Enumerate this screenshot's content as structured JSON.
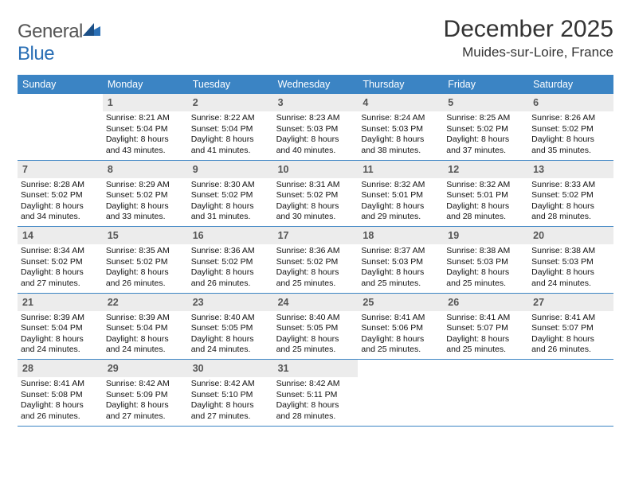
{
  "brand": {
    "part1": "General",
    "part2": "Blue"
  },
  "title": "December 2025",
  "subtitle": "Muides-sur-Loire, France",
  "colors": {
    "header_bg": "#3b84c4",
    "daynum_bg": "#ececec",
    "rule": "#3b84c4"
  },
  "day_headers": [
    "Sunday",
    "Monday",
    "Tuesday",
    "Wednesday",
    "Thursday",
    "Friday",
    "Saturday"
  ],
  "weeks": [
    [
      null,
      {
        "n": "1",
        "rise": "Sunrise: 8:21 AM",
        "set": "Sunset: 5:04 PM",
        "dl1": "Daylight: 8 hours",
        "dl2": "and 43 minutes."
      },
      {
        "n": "2",
        "rise": "Sunrise: 8:22 AM",
        "set": "Sunset: 5:04 PM",
        "dl1": "Daylight: 8 hours",
        "dl2": "and 41 minutes."
      },
      {
        "n": "3",
        "rise": "Sunrise: 8:23 AM",
        "set": "Sunset: 5:03 PM",
        "dl1": "Daylight: 8 hours",
        "dl2": "and 40 minutes."
      },
      {
        "n": "4",
        "rise": "Sunrise: 8:24 AM",
        "set": "Sunset: 5:03 PM",
        "dl1": "Daylight: 8 hours",
        "dl2": "and 38 minutes."
      },
      {
        "n": "5",
        "rise": "Sunrise: 8:25 AM",
        "set": "Sunset: 5:02 PM",
        "dl1": "Daylight: 8 hours",
        "dl2": "and 37 minutes."
      },
      {
        "n": "6",
        "rise": "Sunrise: 8:26 AM",
        "set": "Sunset: 5:02 PM",
        "dl1": "Daylight: 8 hours",
        "dl2": "and 35 minutes."
      }
    ],
    [
      {
        "n": "7",
        "rise": "Sunrise: 8:28 AM",
        "set": "Sunset: 5:02 PM",
        "dl1": "Daylight: 8 hours",
        "dl2": "and 34 minutes."
      },
      {
        "n": "8",
        "rise": "Sunrise: 8:29 AM",
        "set": "Sunset: 5:02 PM",
        "dl1": "Daylight: 8 hours",
        "dl2": "and 33 minutes."
      },
      {
        "n": "9",
        "rise": "Sunrise: 8:30 AM",
        "set": "Sunset: 5:02 PM",
        "dl1": "Daylight: 8 hours",
        "dl2": "and 31 minutes."
      },
      {
        "n": "10",
        "rise": "Sunrise: 8:31 AM",
        "set": "Sunset: 5:02 PM",
        "dl1": "Daylight: 8 hours",
        "dl2": "and 30 minutes."
      },
      {
        "n": "11",
        "rise": "Sunrise: 8:32 AM",
        "set": "Sunset: 5:01 PM",
        "dl1": "Daylight: 8 hours",
        "dl2": "and 29 minutes."
      },
      {
        "n": "12",
        "rise": "Sunrise: 8:32 AM",
        "set": "Sunset: 5:01 PM",
        "dl1": "Daylight: 8 hours",
        "dl2": "and 28 minutes."
      },
      {
        "n": "13",
        "rise": "Sunrise: 8:33 AM",
        "set": "Sunset: 5:02 PM",
        "dl1": "Daylight: 8 hours",
        "dl2": "and 28 minutes."
      }
    ],
    [
      {
        "n": "14",
        "rise": "Sunrise: 8:34 AM",
        "set": "Sunset: 5:02 PM",
        "dl1": "Daylight: 8 hours",
        "dl2": "and 27 minutes."
      },
      {
        "n": "15",
        "rise": "Sunrise: 8:35 AM",
        "set": "Sunset: 5:02 PM",
        "dl1": "Daylight: 8 hours",
        "dl2": "and 26 minutes."
      },
      {
        "n": "16",
        "rise": "Sunrise: 8:36 AM",
        "set": "Sunset: 5:02 PM",
        "dl1": "Daylight: 8 hours",
        "dl2": "and 26 minutes."
      },
      {
        "n": "17",
        "rise": "Sunrise: 8:36 AM",
        "set": "Sunset: 5:02 PM",
        "dl1": "Daylight: 8 hours",
        "dl2": "and 25 minutes."
      },
      {
        "n": "18",
        "rise": "Sunrise: 8:37 AM",
        "set": "Sunset: 5:03 PM",
        "dl1": "Daylight: 8 hours",
        "dl2": "and 25 minutes."
      },
      {
        "n": "19",
        "rise": "Sunrise: 8:38 AM",
        "set": "Sunset: 5:03 PM",
        "dl1": "Daylight: 8 hours",
        "dl2": "and 25 minutes."
      },
      {
        "n": "20",
        "rise": "Sunrise: 8:38 AM",
        "set": "Sunset: 5:03 PM",
        "dl1": "Daylight: 8 hours",
        "dl2": "and 24 minutes."
      }
    ],
    [
      {
        "n": "21",
        "rise": "Sunrise: 8:39 AM",
        "set": "Sunset: 5:04 PM",
        "dl1": "Daylight: 8 hours",
        "dl2": "and 24 minutes."
      },
      {
        "n": "22",
        "rise": "Sunrise: 8:39 AM",
        "set": "Sunset: 5:04 PM",
        "dl1": "Daylight: 8 hours",
        "dl2": "and 24 minutes."
      },
      {
        "n": "23",
        "rise": "Sunrise: 8:40 AM",
        "set": "Sunset: 5:05 PM",
        "dl1": "Daylight: 8 hours",
        "dl2": "and 24 minutes."
      },
      {
        "n": "24",
        "rise": "Sunrise: 8:40 AM",
        "set": "Sunset: 5:05 PM",
        "dl1": "Daylight: 8 hours",
        "dl2": "and 25 minutes."
      },
      {
        "n": "25",
        "rise": "Sunrise: 8:41 AM",
        "set": "Sunset: 5:06 PM",
        "dl1": "Daylight: 8 hours",
        "dl2": "and 25 minutes."
      },
      {
        "n": "26",
        "rise": "Sunrise: 8:41 AM",
        "set": "Sunset: 5:07 PM",
        "dl1": "Daylight: 8 hours",
        "dl2": "and 25 minutes."
      },
      {
        "n": "27",
        "rise": "Sunrise: 8:41 AM",
        "set": "Sunset: 5:07 PM",
        "dl1": "Daylight: 8 hours",
        "dl2": "and 26 minutes."
      }
    ],
    [
      {
        "n": "28",
        "rise": "Sunrise: 8:41 AM",
        "set": "Sunset: 5:08 PM",
        "dl1": "Daylight: 8 hours",
        "dl2": "and 26 minutes."
      },
      {
        "n": "29",
        "rise": "Sunrise: 8:42 AM",
        "set": "Sunset: 5:09 PM",
        "dl1": "Daylight: 8 hours",
        "dl2": "and 27 minutes."
      },
      {
        "n": "30",
        "rise": "Sunrise: 8:42 AM",
        "set": "Sunset: 5:10 PM",
        "dl1": "Daylight: 8 hours",
        "dl2": "and 27 minutes."
      },
      {
        "n": "31",
        "rise": "Sunrise: 8:42 AM",
        "set": "Sunset: 5:11 PM",
        "dl1": "Daylight: 8 hours",
        "dl2": "and 28 minutes."
      },
      null,
      null,
      null
    ]
  ]
}
